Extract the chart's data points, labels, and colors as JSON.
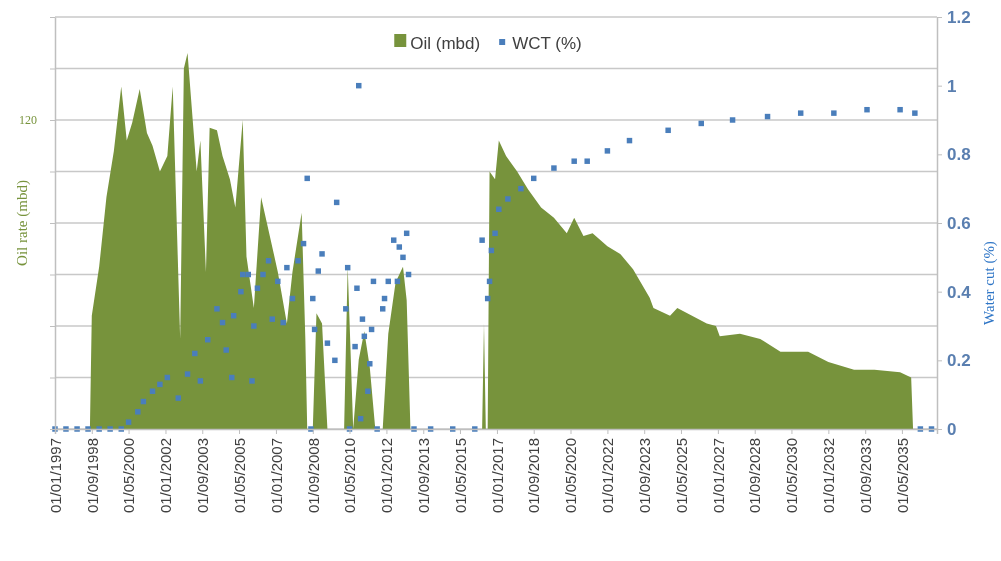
{
  "chart_data": {
    "type": "area",
    "ylabel": "Oil rate (mbd)",
    "y2label": "Water cut (%)",
    "legend": "top",
    "grid": "y",
    "xlim": [
      "1997-01-01",
      "2036-12-01"
    ],
    "xticks": [
      {
        "value": "1997-01-01",
        "label": "01/01/1997"
      },
      {
        "value": "1998-09-01",
        "label": "01/09/1998"
      },
      {
        "value": "2000-05-01",
        "label": "01/05/2000"
      },
      {
        "value": "2002-01-01",
        "label": "01/01/2002"
      },
      {
        "value": "2003-09-01",
        "label": "01/09/2003"
      },
      {
        "value": "2005-05-01",
        "label": "01/05/2005"
      },
      {
        "value": "2007-01-01",
        "label": "01/01/2007"
      },
      {
        "value": "2008-09-01",
        "label": "01/09/2008"
      },
      {
        "value": "2010-05-01",
        "label": "01/05/2010"
      },
      {
        "value": "2012-01-01",
        "label": "01/01/2012"
      },
      {
        "value": "2013-09-01",
        "label": "01/09/2013"
      },
      {
        "value": "2015-05-01",
        "label": "01/05/2015"
      },
      {
        "value": "2017-01-01",
        "label": "01/01/2017"
      },
      {
        "value": "2018-09-01",
        "label": "01/09/2018"
      },
      {
        "value": "2020-05-01",
        "label": "01/05/2020"
      },
      {
        "value": "2022-01-01",
        "label": "01/01/2022"
      },
      {
        "value": "2023-09-01",
        "label": "01/09/2023"
      },
      {
        "value": "2025-05-01",
        "label": "01/05/2025"
      },
      {
        "value": "2027-01-01",
        "label": "01/01/2027"
      },
      {
        "value": "2028-09-01",
        "label": "01/09/2028"
      },
      {
        "value": "2030-05-01",
        "label": "01/05/2030"
      },
      {
        "value": "2032-01-01",
        "label": "01/01/2032"
      },
      {
        "value": "2033-09-01",
        "label": "01/09/2033"
      },
      {
        "value": "2035-05-01",
        "label": "01/05/2035"
      }
    ],
    "ylim": [
      0,
      160
    ],
    "yticks": [
      {
        "value": 0,
        "label": null
      },
      {
        "value": 20,
        "label": null
      },
      {
        "value": 40,
        "label": null
      },
      {
        "value": 60,
        "label": null
      },
      {
        "value": 80,
        "label": null
      },
      {
        "value": 100,
        "label": null
      },
      120,
      {
        "value": 140,
        "label": null
      },
      {
        "value": 160,
        "label": null
      }
    ],
    "y2lim": [
      0,
      1.2
    ],
    "y2ticks": [
      0,
      0.2,
      0.4,
      0.6,
      0.8,
      1,
      1.2
    ],
    "series": [
      {
        "name": "Oil (mbd)",
        "color": "#77933c",
        "x": [
          "1997-01",
          "1998-08",
          "1998-09",
          "1999-01",
          "1999-05",
          "1999-09",
          "2000-01",
          "2000-04",
          "2000-07",
          "2000-11",
          "2001-03",
          "2001-06",
          "2001-10",
          "2002-02",
          "2002-05",
          "2002-09",
          "2002-11",
          "2003-01",
          "2003-03",
          "2003-06",
          "2003-08",
          "2003-11",
          "2004-01",
          "2004-05",
          "2004-08",
          "2004-12",
          "2005-03",
          "2005-07",
          "2005-09",
          "2006-01",
          "2006-05",
          "2006-10",
          "2007-02",
          "2007-07",
          "2007-10",
          "2008-03",
          "2008-05",
          "2008-06",
          "2008-09",
          "2008-11",
          "2009-02",
          "2009-05",
          "2010-02",
          "2010-04",
          "2010-07",
          "2010-10",
          "2011-01",
          "2011-04",
          "2011-07",
          "2011-11",
          "2012-02",
          "2012-06",
          "2012-10",
          "2012-12",
          "2013-02",
          "2016-05",
          "2016-06",
          "2016-07",
          "2016-08",
          "2016-09",
          "2016-12",
          "2017-02",
          "2017-06",
          "2017-12",
          "2018-06",
          "2019-01",
          "2019-08",
          "2020-03",
          "2020-07",
          "2020-12",
          "2021-05",
          "2022-01",
          "2022-08",
          "2023-03",
          "2023-12",
          "2024-02",
          "2024-11",
          "2025-03",
          "2026-07",
          "2026-12",
          "2027-02",
          "2028-01",
          "2028-12",
          "2029-11",
          "2031-02",
          "2032-01",
          "2033-03",
          "2034-02",
          "2035-04",
          "2035-10",
          "2035-11",
          "2036-12"
        ],
        "values": [
          0,
          0,
          44,
          63,
          90,
          108,
          133,
          112,
          119,
          132,
          115,
          110,
          100,
          106,
          133,
          35,
          140,
          146,
          128,
          100,
          112,
          61,
          117,
          116,
          106,
          97,
          86,
          120,
          67,
          47,
          90,
          74,
          61,
          41,
          61,
          84,
          35,
          0,
          0,
          45,
          41,
          0,
          0,
          63,
          0,
          27,
          38,
          24,
          0,
          0,
          37,
          57,
          63,
          50,
          0,
          0,
          41,
          0,
          0,
          100,
          97,
          112,
          106,
          100,
          93,
          86,
          82,
          76,
          82,
          75,
          76,
          71,
          68,
          62,
          51,
          47,
          44,
          47,
          41,
          40,
          36,
          37,
          35,
          30,
          30,
          26,
          23,
          23,
          22,
          20,
          0,
          0
        ]
      },
      {
        "name": "WCT (%)",
        "type": "scatter",
        "axis": "y2",
        "marker": "square",
        "color": "#4a7ebb",
        "x": [
          "1997-01",
          "1997-07",
          "1998-01",
          "1998-07",
          "1999-01",
          "1999-07",
          "2000-01",
          "2000-05",
          "2000-10",
          "2001-01",
          "2001-06",
          "2001-10",
          "2002-02",
          "2002-08",
          "2003-01",
          "2003-05",
          "2003-08",
          "2003-12",
          "2004-05",
          "2004-08",
          "2004-10",
          "2005-01",
          "2005-02",
          "2005-06",
          "2005-07",
          "2005-10",
          "2005-12",
          "2006-01",
          "2006-03",
          "2006-06",
          "2006-09",
          "2006-11",
          "2007-02",
          "2007-05",
          "2007-07",
          "2007-10",
          "2008-01",
          "2008-04",
          "2008-06",
          "2008-08",
          "2008-09",
          "2008-10",
          "2008-12",
          "2009-02",
          "2009-05",
          "2009-09",
          "2009-10",
          "2010-03",
          "2010-04",
          "2010-05",
          "2010-08",
          "2010-09",
          "2010-10",
          "2010-11",
          "2010-12",
          "2011-01",
          "2011-03",
          "2011-04",
          "2011-05",
          "2011-06",
          "2011-08",
          "2011-11",
          "2011-12",
          "2012-02",
          "2012-05",
          "2012-07",
          "2012-08",
          "2012-10",
          "2012-12",
          "2013-01",
          "2013-04",
          "2014-01",
          "2015-01",
          "2016-01",
          "2016-05",
          "2016-08",
          "2016-09",
          "2016-10",
          "2016-12",
          "2017-02",
          "2017-07",
          "2018-02",
          "2018-09",
          "2019-08",
          "2020-07",
          "2021-02",
          "2022-01",
          "2023-01",
          "2024-10",
          "2026-04",
          "2027-09",
          "2029-04",
          "2030-10",
          "2032-04",
          "2033-10",
          "2035-04",
          "2035-12",
          "2036-03",
          "2036-09"
        ],
        "values": [
          0,
          0,
          0,
          0,
          0,
          0,
          0,
          0.02,
          0.05,
          0.08,
          0.11,
          0.13,
          0.15,
          0.09,
          0.16,
          0.22,
          0.14,
          0.26,
          0.35,
          0.31,
          0.23,
          0.15,
          0.33,
          0.4,
          0.45,
          0.45,
          0.14,
          0.3,
          0.41,
          0.45,
          0.49,
          0.32,
          0.43,
          0.31,
          0.47,
          0.38,
          0.49,
          0.54,
          0.73,
          0,
          0.38,
          0.29,
          0.46,
          0.51,
          0.25,
          0.2,
          0.66,
          0.35,
          0.47,
          0,
          0.24,
          0.41,
          1,
          0.03,
          0.32,
          0.27,
          0.11,
          0.19,
          0.29,
          0.43,
          0,
          0.35,
          0.38,
          0.43,
          0.55,
          0.43,
          0.53,
          0.5,
          0.57,
          0.45,
          0,
          0,
          0,
          0,
          0.55,
          0.38,
          0.43,
          0.52,
          0.57,
          0.64,
          0.67,
          0.7,
          0.73,
          0.76,
          0.78,
          0.78,
          0.81,
          0.84,
          0.87,
          0.89,
          0.9,
          0.91,
          0.92,
          0.92,
          0.93,
          0.93,
          0.92,
          0,
          0
        ]
      }
    ]
  }
}
